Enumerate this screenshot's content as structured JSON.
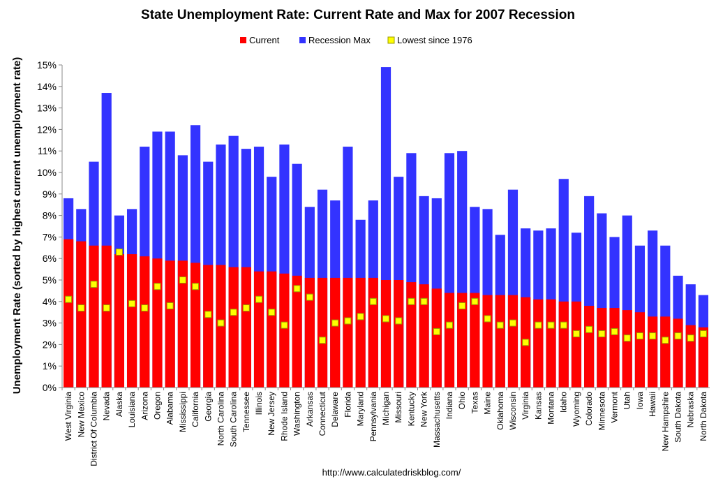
{
  "chart_data": {
    "type": "bar",
    "title": "State Unemployment Rate: Current Rate and Max for 2007 Recession",
    "xlabel": "",
    "ylabel": "Unemployment Rate (sorted by highest current unemployment rate)",
    "ylim": [
      0,
      15
    ],
    "y_tick_labels": [
      "0%",
      "1%",
      "2%",
      "3%",
      "4%",
      "5%",
      "6%",
      "7%",
      "8%",
      "9%",
      "10%",
      "11%",
      "12%",
      "13%",
      "14%",
      "15%"
    ],
    "grid": false,
    "legend_position": "top-center",
    "source": "http://www.calculatedriskblog.com/",
    "colors": {
      "current": "#ff0000",
      "max": "#3333ff",
      "lowest": "#ffff00",
      "lowest_border": "#999900"
    },
    "categories": [
      "West Virginia",
      "New Mexico",
      "District Of Columbia",
      "Nevada",
      "Alaska",
      "Louisiana",
      "Arizona",
      "Oregon",
      "Alabama",
      "Mississippi",
      "California",
      "Georgia",
      "North Carolina",
      "South Carolina",
      "Tennessee",
      "Illinois",
      "New Jersey",
      "Rhode Island",
      "Washington",
      "Arkansas",
      "Connecticut",
      "Delaware",
      "Florida",
      "Maryland",
      "Pennsylvania",
      "Michigan",
      "Missouri",
      "Kentucky",
      "New York",
      "Massachusetts",
      "Indiana",
      "Ohio",
      "Texas",
      "Maine",
      "Oklahoma",
      "Wisconsin",
      "Virginia",
      "Kansas",
      "Montana",
      "Idaho",
      "Wyoming",
      "Colorado",
      "Minnesota",
      "Vermont",
      "Utah",
      "Iowa",
      "Hawaii",
      "New Hampshire",
      "South Dakota",
      "Nebraska",
      "North Dakota"
    ],
    "series": [
      {
        "name": "Current",
        "values": [
          6.9,
          6.8,
          6.6,
          6.6,
          6.2,
          6.2,
          6.1,
          6.0,
          5.9,
          5.9,
          5.8,
          5.7,
          5.7,
          5.6,
          5.6,
          5.4,
          5.4,
          5.3,
          5.2,
          5.1,
          5.1,
          5.1,
          5.1,
          5.1,
          5.1,
          5.0,
          5.0,
          4.9,
          4.8,
          4.6,
          4.4,
          4.4,
          4.4,
          4.3,
          4.3,
          4.3,
          4.2,
          4.1,
          4.1,
          4.0,
          4.0,
          3.8,
          3.7,
          3.7,
          3.6,
          3.5,
          3.3,
          3.3,
          3.2,
          2.9,
          2.8
        ]
      },
      {
        "name": "Recession Max",
        "values": [
          8.8,
          8.3,
          10.5,
          13.7,
          8.0,
          8.3,
          11.2,
          11.9,
          11.9,
          10.8,
          12.2,
          10.5,
          11.3,
          11.7,
          11.1,
          11.2,
          9.8,
          11.3,
          10.4,
          8.4,
          9.2,
          8.7,
          11.2,
          7.8,
          8.7,
          14.9,
          9.8,
          10.9,
          8.9,
          8.8,
          10.9,
          11.0,
          8.4,
          8.3,
          7.1,
          9.2,
          7.4,
          7.3,
          7.4,
          9.7,
          7.2,
          8.9,
          8.1,
          7.0,
          8.0,
          6.6,
          7.3,
          6.6,
          5.2,
          4.8,
          4.3
        ]
      },
      {
        "name": "Lowest since 1976",
        "values": [
          4.1,
          3.7,
          4.8,
          3.7,
          6.3,
          3.9,
          3.7,
          4.7,
          3.8,
          5.0,
          4.7,
          3.4,
          3.0,
          3.5,
          3.7,
          4.1,
          3.5,
          2.9,
          4.6,
          4.2,
          2.2,
          3.0,
          3.1,
          3.3,
          4.0,
          3.2,
          3.1,
          4.0,
          4.0,
          2.6,
          2.9,
          3.8,
          4.0,
          3.2,
          2.9,
          3.0,
          2.1,
          2.9,
          2.9,
          2.9,
          2.5,
          2.7,
          2.5,
          2.6,
          2.3,
          2.4,
          2.4,
          2.2,
          2.4,
          2.3,
          2.5
        ]
      }
    ]
  }
}
